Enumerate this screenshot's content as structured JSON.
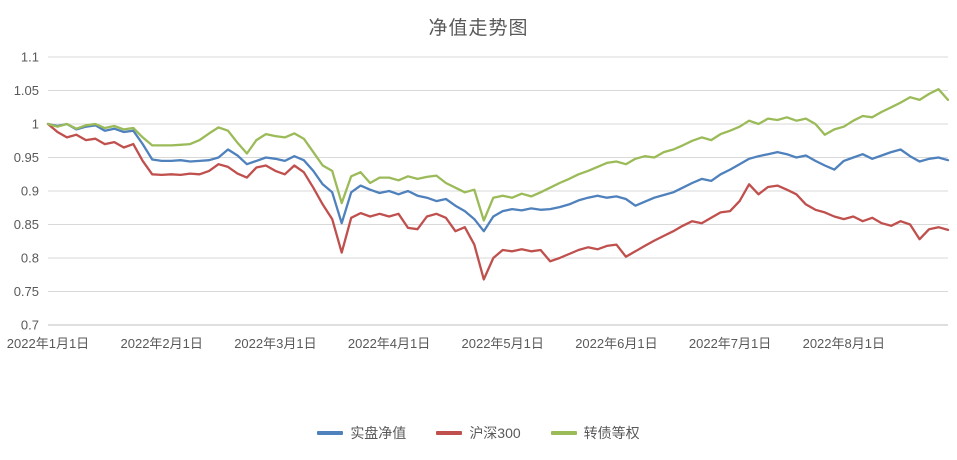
{
  "chart_data": {
    "type": "line",
    "title": "净值走势图",
    "xlabel": "",
    "ylabel": "",
    "ylim": [
      0.7,
      1.1
    ],
    "grid": "horizontal",
    "legend_position": "bottom",
    "points_per_month": 12,
    "y_ticks": [
      0.7,
      0.75,
      0.8,
      0.85,
      0.9,
      0.95,
      1.0,
      1.05,
      1.1
    ],
    "y_tick_labels": [
      "0.7",
      "0.75",
      "0.8",
      "0.85",
      "0.9",
      "0.95",
      "1",
      "1.05",
      "1.1"
    ],
    "x_tick_labels": [
      "2022年1月1日",
      "2022年2月1日",
      "2022年3月1日",
      "2022年4月1日",
      "2022年5月1日",
      "2022年6月1日",
      "2022年7月1日",
      "2022年8月1日"
    ],
    "series": [
      {
        "name": "实盘净值",
        "color": "#4F81BD",
        "values": [
          1.0,
          0.997,
          1.0,
          0.992,
          0.996,
          0.998,
          0.99,
          0.993,
          0.988,
          0.99,
          0.97,
          0.947,
          0.945,
          0.945,
          0.946,
          0.944,
          0.945,
          0.946,
          0.95,
          0.962,
          0.953,
          0.94,
          0.945,
          0.95,
          0.948,
          0.945,
          0.952,
          0.946,
          0.93,
          0.91,
          0.898,
          0.852,
          0.898,
          0.908,
          0.902,
          0.897,
          0.9,
          0.895,
          0.9,
          0.893,
          0.89,
          0.885,
          0.888,
          0.878,
          0.87,
          0.858,
          0.84,
          0.862,
          0.87,
          0.873,
          0.871,
          0.874,
          0.872,
          0.873,
          0.876,
          0.88,
          0.886,
          0.89,
          0.893,
          0.89,
          0.892,
          0.888,
          0.878,
          0.884,
          0.89,
          0.894,
          0.898,
          0.905,
          0.912,
          0.918,
          0.915,
          0.925,
          0.932,
          0.94,
          0.948,
          0.952,
          0.955,
          0.958,
          0.955,
          0.95,
          0.953,
          0.945,
          0.938,
          0.932,
          0.945,
          0.95,
          0.955,
          0.948,
          0.953,
          0.958,
          0.962,
          0.952,
          0.944,
          0.948,
          0.95,
          0.946
        ]
      },
      {
        "name": "沪深300",
        "color": "#C0504D",
        "values": [
          1.0,
          0.988,
          0.98,
          0.984,
          0.976,
          0.978,
          0.97,
          0.973,
          0.965,
          0.97,
          0.945,
          0.925,
          0.924,
          0.925,
          0.924,
          0.926,
          0.925,
          0.93,
          0.94,
          0.936,
          0.926,
          0.92,
          0.935,
          0.938,
          0.93,
          0.925,
          0.938,
          0.928,
          0.905,
          0.88,
          0.858,
          0.808,
          0.86,
          0.867,
          0.862,
          0.866,
          0.862,
          0.866,
          0.845,
          0.843,
          0.862,
          0.866,
          0.86,
          0.84,
          0.846,
          0.82,
          0.768,
          0.8,
          0.812,
          0.81,
          0.813,
          0.81,
          0.812,
          0.795,
          0.8,
          0.806,
          0.812,
          0.816,
          0.813,
          0.818,
          0.82,
          0.802,
          0.81,
          0.818,
          0.826,
          0.833,
          0.84,
          0.848,
          0.855,
          0.852,
          0.86,
          0.868,
          0.87,
          0.885,
          0.91,
          0.895,
          0.906,
          0.908,
          0.902,
          0.895,
          0.88,
          0.872,
          0.868,
          0.862,
          0.858,
          0.862,
          0.855,
          0.86,
          0.852,
          0.848,
          0.855,
          0.85,
          0.828,
          0.843,
          0.846,
          0.842
        ]
      },
      {
        "name": "转债等权",
        "color": "#9BBB59",
        "values": [
          1.0,
          0.996,
          1.0,
          0.993,
          0.998,
          1.0,
          0.994,
          0.997,
          0.992,
          0.994,
          0.98,
          0.968,
          0.968,
          0.968,
          0.969,
          0.97,
          0.976,
          0.986,
          0.995,
          0.99,
          0.972,
          0.956,
          0.976,
          0.985,
          0.982,
          0.98,
          0.986,
          0.978,
          0.958,
          0.938,
          0.93,
          0.882,
          0.922,
          0.928,
          0.912,
          0.92,
          0.92,
          0.916,
          0.922,
          0.918,
          0.921,
          0.923,
          0.912,
          0.905,
          0.898,
          0.902,
          0.856,
          0.89,
          0.893,
          0.89,
          0.896,
          0.892,
          0.898,
          0.905,
          0.912,
          0.918,
          0.925,
          0.93,
          0.936,
          0.942,
          0.944,
          0.94,
          0.948,
          0.952,
          0.95,
          0.958,
          0.962,
          0.968,
          0.975,
          0.98,
          0.976,
          0.985,
          0.99,
          0.996,
          1.005,
          1.0,
          1.008,
          1.006,
          1.01,
          1.005,
          1.008,
          1.0,
          0.984,
          0.992,
          0.996,
          1.005,
          1.012,
          1.01,
          1.018,
          1.025,
          1.032,
          1.04,
          1.036,
          1.045,
          1.052,
          1.036
        ]
      }
    ]
  }
}
